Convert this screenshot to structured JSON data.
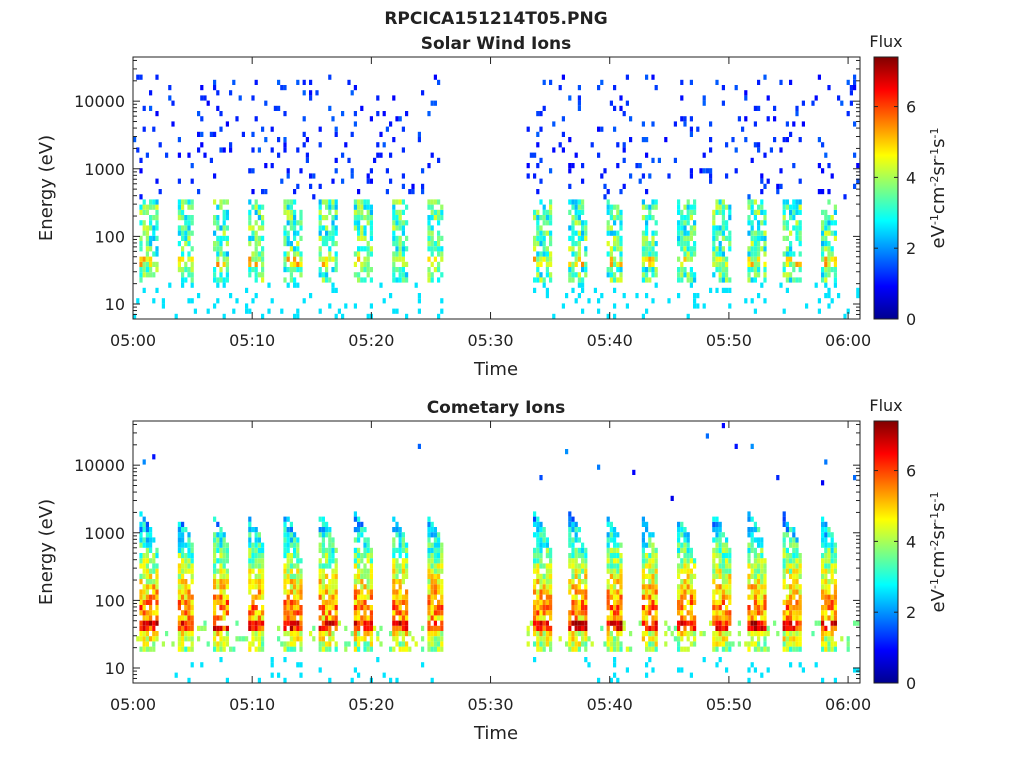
{
  "figure": {
    "title": "RPCICA151214T05.PNG"
  },
  "chart_data": [
    {
      "type": "heatmap",
      "title": "Solar Wind Ions",
      "xlabel": "Time",
      "ylabel": "Energy (eV)",
      "x_ticks": [
        "05:00",
        "05:10",
        "05:20",
        "05:30",
        "05:40",
        "05:50",
        "06:00"
      ],
      "xlim": [
        "05:00",
        "06:01"
      ],
      "y_scale": "log",
      "y_ticks": [
        "10",
        "100",
        "1000",
        "10000"
      ],
      "ylim": [
        6,
        45000
      ],
      "data_gap": [
        "05:26",
        "05:33"
      ],
      "bursts_start": [
        "05:00",
        "05:03",
        "05:06",
        "05:09",
        "05:12",
        "05:15",
        "05:18",
        "05:21",
        "05:24",
        "05:33",
        "05:36",
        "05:39",
        "05:42",
        "05:45",
        "05:48",
        "05:51",
        "05:54",
        "05:57"
      ],
      "burst_energy_range_eV": [
        20,
        350
      ],
      "colorbar": {
        "title": "Flux",
        "label_parts": [
          "eV",
          "-1",
          "cm",
          "-2",
          "sr",
          "-1",
          "s",
          "-1"
        ],
        "range": [
          0,
          7.4
        ],
        "ticks": [
          "0",
          "2",
          "4",
          "6"
        ],
        "colormap": "jet"
      }
    },
    {
      "type": "heatmap",
      "title": "Cometary Ions",
      "xlabel": "Time",
      "ylabel": "Energy (eV)",
      "x_ticks": [
        "05:00",
        "05:10",
        "05:20",
        "05:30",
        "05:40",
        "05:50",
        "06:00"
      ],
      "xlim": [
        "05:00",
        "06:01"
      ],
      "y_scale": "log",
      "y_ticks": [
        "10",
        "100",
        "1000",
        "10000"
      ],
      "ylim": [
        6,
        45000
      ],
      "data_gap": [
        "05:26",
        "05:33"
      ],
      "bursts_start": [
        "05:00",
        "05:03",
        "05:06",
        "05:09",
        "05:12",
        "05:15",
        "05:18",
        "05:21",
        "05:24",
        "05:33",
        "05:36",
        "05:39",
        "05:42",
        "05:45",
        "05:48",
        "05:51",
        "05:54",
        "05:57"
      ],
      "burst_energy_range_eV": [
        15,
        2000
      ],
      "colorbar": {
        "title": "Flux",
        "label_parts": [
          "eV",
          "-1",
          "cm",
          "-2",
          "sr",
          "-1",
          "s",
          "-1"
        ],
        "range": [
          0,
          7.4
        ],
        "ticks": [
          "0",
          "2",
          "4",
          "6"
        ],
        "colormap": "jet"
      }
    }
  ]
}
